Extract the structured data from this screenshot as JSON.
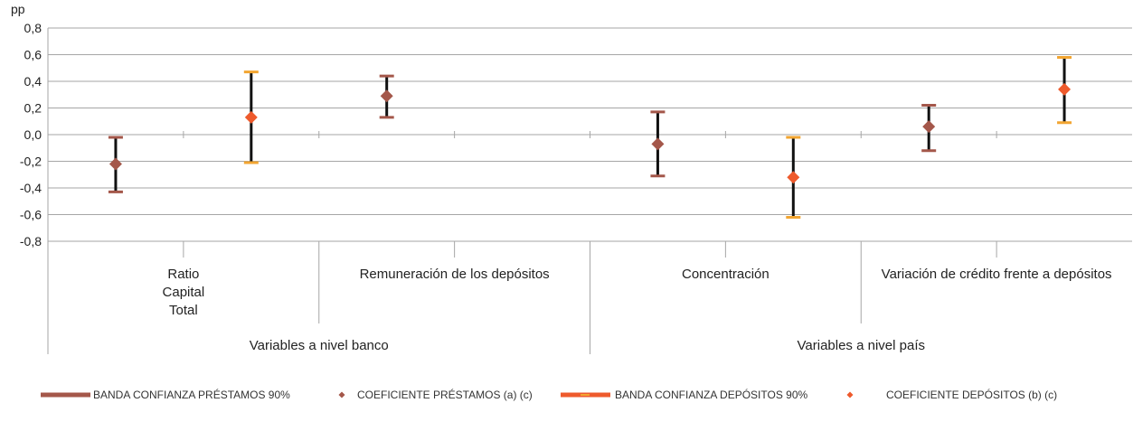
{
  "chart_data": {
    "type": "scatter",
    "y_unit_label": "pp",
    "ylim": [
      -0.8,
      0.8
    ],
    "y_ticks": [
      "0,8",
      "0,6",
      "0,4",
      "0,2",
      "0,0",
      "-0,2",
      "-0,4",
      "-0,6",
      "-0,8"
    ],
    "grid": true,
    "categories": [
      {
        "name": "Ratio Capital Total",
        "lines": [
          "Ratio",
          "Capital",
          "Total"
        ],
        "group": "Variables a nivel banco"
      },
      {
        "name": "Remuneración de los depósitos",
        "lines": [
          "Remuneración de los depósitos"
        ],
        "group": "Variables a nivel banco"
      },
      {
        "name": "Concentración",
        "lines": [
          "Concentración"
        ],
        "group": "Variables a nivel país"
      },
      {
        "name": "Variación de crédito frente a depósitos",
        "lines": [
          "Variación de crédito frente a depósitos"
        ],
        "group": "Variables a nivel país"
      }
    ],
    "groups": [
      "Variables a nivel banco",
      "Variables a nivel país"
    ],
    "series": [
      {
        "name": "COEFICIENTE PRÉSTAMOS (a) (c)",
        "band_name": "BANDA CONFIANZA PRÉSTAMOS 90%",
        "color": "#a4574a",
        "values": [
          -0.22,
          0.29,
          -0.07,
          0.06
        ],
        "lower": [
          -0.43,
          0.13,
          -0.31,
          -0.12
        ],
        "upper": [
          -0.02,
          0.44,
          0.17,
          0.22
        ]
      },
      {
        "name": "COEFICIENTE DEPÓSITOS (b) (c)",
        "band_name": "BANDA CONFIANZA DEPÓSITOS 90%",
        "color": "#ee5a2c",
        "cap_color": "#f2a531",
        "values": [
          0.13,
          null,
          -0.32,
          0.34
        ],
        "lower": [
          -0.21,
          null,
          -0.62,
          0.09
        ],
        "upper": [
          0.47,
          null,
          -0.02,
          0.58
        ]
      }
    ],
    "legend": {
      "position": "bottom",
      "items": [
        {
          "label": "BANDA CONFIANZA PRÉSTAMOS 90%",
          "kind": "band",
          "color": "#a4574a"
        },
        {
          "label": "COEFICIENTE PRÉSTAMOS (a) (c)",
          "kind": "marker",
          "color": "#a4574a"
        },
        {
          "label": "BANDA CONFIANZA DEPÓSITOS 90%",
          "kind": "band",
          "color": "#ee5a2c",
          "accent": "#f2a531"
        },
        {
          "label": "COEFICIENTE DEPÓSITOS (b) (c)",
          "kind": "marker",
          "color": "#ee5a2c"
        }
      ]
    }
  }
}
